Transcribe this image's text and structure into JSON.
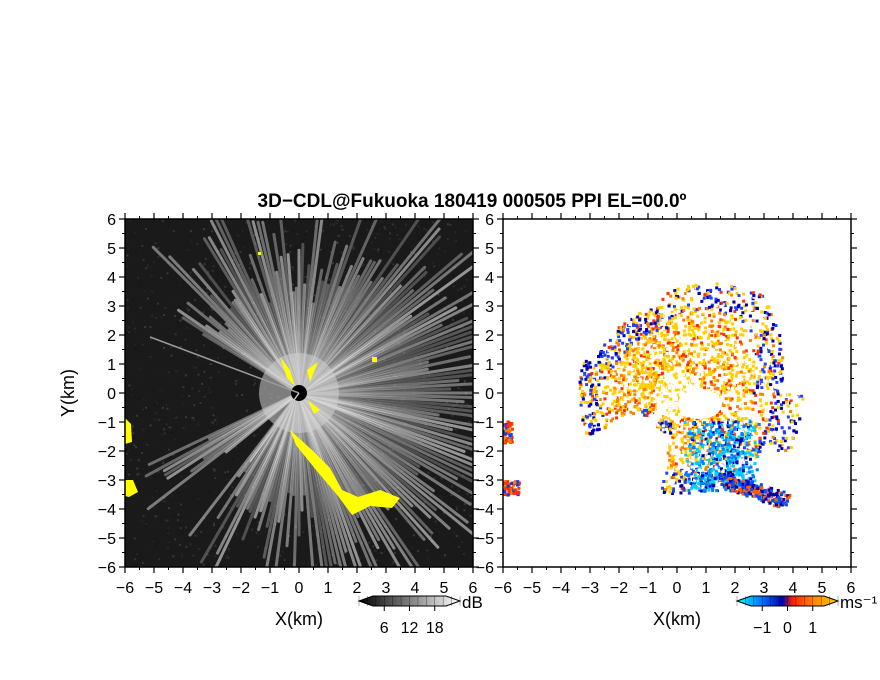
{
  "chart_data": [
    {
      "type": "heatmap",
      "panel": "reflectivity",
      "title": "3D−CDL@Fukuoka 180419 000505 PPI EL=00.0º",
      "xlabel": "X(km)",
      "ylabel": "Y(km)",
      "xlim": [
        -6,
        6
      ],
      "ylim": [
        -6,
        6
      ],
      "xticks": [
        "−6",
        "−5",
        "−4",
        "−3",
        "−2",
        "−1",
        "0",
        "1",
        "2",
        "3",
        "4",
        "5",
        "6"
      ],
      "yticks": [
        "−6",
        "−5",
        "−4",
        "−3",
        "−2",
        "−1",
        "0",
        "1",
        "2",
        "3",
        "4",
        "5",
        "6"
      ],
      "colorbar": {
        "unit": "dB",
        "ticks": [
          "6",
          "12",
          "18"
        ],
        "range": [
          0,
          24
        ]
      },
      "background_color": "#1a1a1a",
      "highlight_color": "#ffff00",
      "radar_center": [
        0,
        0
      ],
      "blocked_sectors_deg": [
        [
          150,
          205
        ],
        [
          220,
          232
        ]
      ]
    },
    {
      "type": "heatmap",
      "panel": "doppler-velocity",
      "xlabel": "X(km)",
      "xlim": [
        -6,
        6
      ],
      "ylim": [
        -6,
        6
      ],
      "xticks": [
        "−6",
        "−5",
        "−4",
        "−3",
        "−2",
        "−1",
        "0",
        "1",
        "2",
        "3",
        "4",
        "5",
        "6"
      ],
      "yticks": [
        "−6",
        "−5",
        "−4",
        "−3",
        "−2",
        "−1",
        "0",
        "1",
        "2",
        "3",
        "4",
        "5",
        "6"
      ],
      "colorbar": {
        "unit": "ms⁻¹",
        "ticks": [
          "−1",
          "0",
          "1"
        ],
        "range": [
          -2,
          2
        ]
      },
      "colors": [
        "#00ffff",
        "#0080ff",
        "#0000cc",
        "#ff3000",
        "#ff8000",
        "#ffd000",
        "#ffffff"
      ]
    }
  ]
}
